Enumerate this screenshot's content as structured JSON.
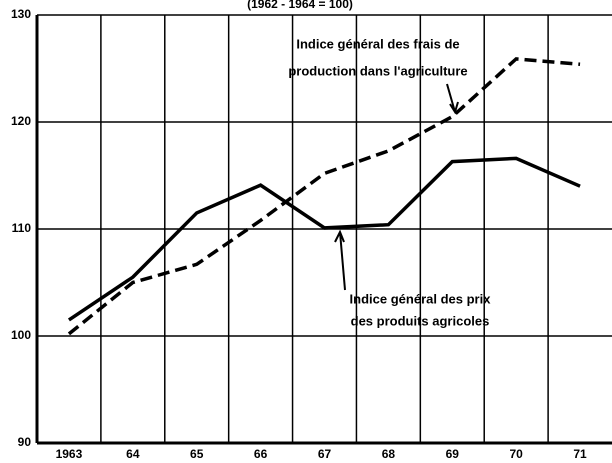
{
  "chart_data": {
    "type": "line",
    "subtitle": "(1962 - 1964 = 100)",
    "categories": [
      "1963",
      "64",
      "65",
      "66",
      "67",
      "68",
      "69",
      "70",
      "71"
    ],
    "series": [
      {
        "name": "Indice général des frais de production dans l'agriculture",
        "color": "#000000",
        "dash": true,
        "values": [
          100.2,
          105,
          106.7,
          110.8,
          115.2,
          117.3,
          120.5,
          125.9,
          125.4
        ]
      },
      {
        "name": "Indice général des prix des produits agricoles",
        "color": "#000000",
        "dash": false,
        "values": [
          101.5,
          105.5,
          111.5,
          114.1,
          110.1,
          110.4,
          116.3,
          116.6,
          114.0
        ]
      }
    ],
    "annotations": [
      [
        "Indice général des frais de",
        "production dans l'agriculture"
      ],
      [
        "Indice général des prix",
        "des produits agricoles"
      ]
    ],
    "ylim": [
      90,
      130
    ],
    "yticks": [
      90,
      100,
      110,
      120,
      130
    ],
    "grid": true
  }
}
